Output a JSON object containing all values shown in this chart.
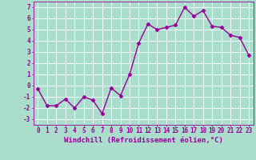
{
  "x": [
    0,
    1,
    2,
    3,
    4,
    5,
    6,
    7,
    8,
    9,
    10,
    11,
    12,
    13,
    14,
    15,
    16,
    17,
    18,
    19,
    20,
    21,
    22,
    23
  ],
  "y": [
    -0.3,
    -1.8,
    -1.8,
    -1.2,
    -2.0,
    -1.0,
    -1.3,
    -2.5,
    -0.2,
    -0.9,
    1.0,
    3.8,
    5.5,
    5.0,
    5.2,
    5.4,
    7.0,
    6.2,
    6.7,
    5.3,
    5.2,
    4.5,
    4.3,
    2.7
  ],
  "line_color": "#990099",
  "marker": "D",
  "marker_size": 2.5,
  "bg_color": "#aaddcc",
  "grid_color": "#cceeee",
  "xlabel": "Windchill (Refroidissement éolien,°C)",
  "ylabel": "",
  "xlim": [
    -0.5,
    23.5
  ],
  "ylim": [
    -3.5,
    7.5
  ],
  "yticks": [
    -3,
    -2,
    -1,
    0,
    1,
    2,
    3,
    4,
    5,
    6,
    7
  ],
  "xticks": [
    0,
    1,
    2,
    3,
    4,
    5,
    6,
    7,
    8,
    9,
    10,
    11,
    12,
    13,
    14,
    15,
    16,
    17,
    18,
    19,
    20,
    21,
    22,
    23
  ],
  "tick_fontsize": 5.5,
  "xlabel_fontsize": 6.5,
  "line_width": 1.0
}
